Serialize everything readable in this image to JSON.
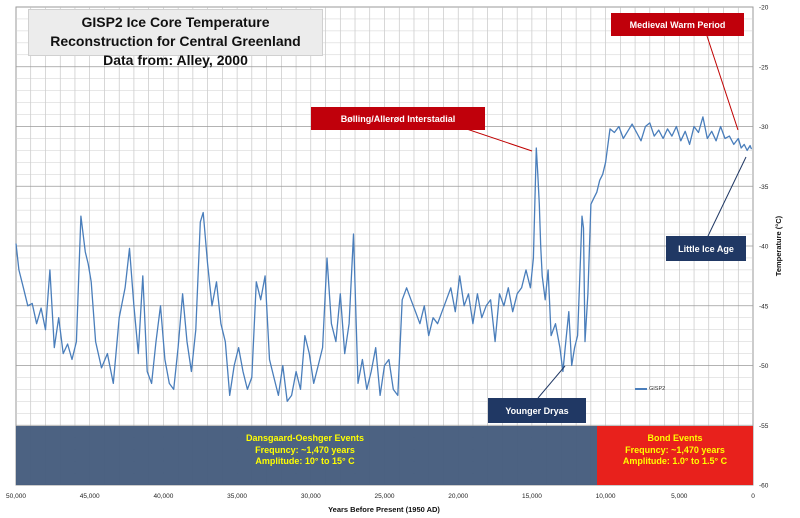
{
  "title": {
    "line1": "GISP2 Ice Core Temperature Reconstruction for Central Greenland",
    "line2": "Data from: Alley, 2000"
  },
  "callouts": {
    "medieval": "Medieval Warm Period",
    "bolling": "Bølling/Allerød Interstadial",
    "little_ice_age": "Little Ice Age",
    "younger_dryas": "Younger Dryas"
  },
  "events": {
    "dansgaard": {
      "name": "Dansgaard-Oeshger Events",
      "frequency": "Frequncy: ~1,470 years",
      "amplitude": "Amplitude: 10° to 15° C"
    },
    "bond": {
      "name": "Bond Events",
      "frequency": "Frequncy: ~1,470 years",
      "amplitude": "Amplitude: 1.0° to 1.5° C"
    }
  },
  "legend": {
    "label": "GISP2"
  },
  "colors": {
    "line": "#4a7ebb",
    "dansgaard": "#465d7e",
    "bond": "#e8211c",
    "event_text": "#ffff00",
    "red_callout": "#c0000b",
    "navy_callout": "#203864"
  },
  "chart_data": {
    "type": "line",
    "title": "GISP2 Ice Core Temperature Reconstruction for Central Greenland",
    "xlabel": "Years Before Present (1950 AD)",
    "ylabel": "Temperature (°C)",
    "x_reversed": true,
    "xlim": [
      50000,
      0
    ],
    "ylim": [
      -60,
      -20
    ],
    "x_ticks": [
      50000,
      45000,
      40000,
      35000,
      30000,
      25000,
      20000,
      15000,
      10000,
      5000,
      0
    ],
    "x_tick_labels": [
      "50,000",
      "45,000",
      "40,000",
      "35,000",
      "30,000",
      "25,000",
      "20,000",
      "15,000",
      "10,000",
      "5,000",
      "0"
    ],
    "y_ticks": [
      -20,
      -25,
      -30,
      -35,
      -40,
      -45,
      -50,
      -55,
      -60
    ],
    "y_tick_labels": [
      "-20",
      "-25",
      "-30",
      "-35",
      "-40",
      "-45",
      "-50",
      "-55",
      "-60"
    ],
    "grid": true,
    "legend_position": "lower-right",
    "series": [
      {
        "name": "GISP2",
        "x": [
          50000,
          49800,
          49500,
          49200,
          48900,
          48600,
          48300,
          48000,
          47700,
          47400,
          47100,
          46800,
          46500,
          46200,
          45900,
          45600,
          45300,
          45100,
          44900,
          44600,
          44200,
          43800,
          43400,
          43000,
          42600,
          42300,
          42000,
          41700,
          41400,
          41100,
          40800,
          40500,
          40200,
          39900,
          39600,
          39300,
          39000,
          38700,
          38400,
          38100,
          37800,
          37500,
          37300,
          37000,
          36700,
          36400,
          36100,
          35800,
          35500,
          35200,
          34900,
          34600,
          34300,
          34000,
          33700,
          33400,
          33100,
          32800,
          32500,
          32200,
          31900,
          31600,
          31300,
          31000,
          30700,
          30400,
          30100,
          29800,
          29500,
          29200,
          28900,
          28600,
          28300,
          28000,
          27700,
          27400,
          27100,
          26800,
          26500,
          26200,
          25900,
          25600,
          25300,
          25000,
          24700,
          24400,
          24100,
          23800,
          23500,
          23200,
          22900,
          22600,
          22300,
          22000,
          21700,
          21400,
          21100,
          20800,
          20500,
          20200,
          19900,
          19600,
          19300,
          19000,
          18700,
          18400,
          18100,
          17800,
          17500,
          17200,
          16900,
          16600,
          16300,
          16000,
          15700,
          15400,
          15100,
          14900,
          14700,
          14600,
          14500,
          14400,
          14300,
          14100,
          13900,
          13700,
          13400,
          13100,
          12900,
          12700,
          12500,
          12300,
          12100,
          11900,
          11700,
          11600,
          11500,
          11400,
          11200,
          11000,
          10800,
          10600,
          10400,
          10200,
          10000,
          9700,
          9400,
          9100,
          8800,
          8500,
          8200,
          7900,
          7600,
          7300,
          7000,
          6700,
          6400,
          6100,
          5800,
          5500,
          5200,
          4900,
          4600,
          4300,
          4000,
          3700,
          3400,
          3100,
          2800,
          2500,
          2200,
          1900,
          1600,
          1300,
          1000,
          800,
          600,
          400,
          200,
          100
        ],
        "y": [
          -39.8,
          -42.0,
          -43.5,
          -45.0,
          -44.8,
          -46.5,
          -45.2,
          -47.0,
          -42.0,
          -48.5,
          -46.0,
          -49.0,
          -48.2,
          -49.5,
          -48.0,
          -37.5,
          -40.5,
          -41.5,
          -43.0,
          -48.0,
          -50.2,
          -49.0,
          -51.5,
          -46.0,
          -43.5,
          -40.2,
          -45.0,
          -49.0,
          -42.5,
          -50.5,
          -51.5,
          -48.0,
          -45.0,
          -49.5,
          -51.5,
          -52.0,
          -48.5,
          -44.0,
          -48.0,
          -50.5,
          -47.0,
          -38.0,
          -37.2,
          -41.5,
          -45.0,
          -43.0,
          -46.5,
          -48.0,
          -52.5,
          -50.0,
          -48.5,
          -50.5,
          -52.0,
          -51.0,
          -43.0,
          -44.5,
          -42.5,
          -49.5,
          -51.0,
          -52.5,
          -50.0,
          -53.0,
          -52.5,
          -50.5,
          -52.0,
          -47.5,
          -49.0,
          -51.5,
          -50.0,
          -48.5,
          -41.0,
          -46.5,
          -48.0,
          -44.0,
          -49.0,
          -46.5,
          -39.0,
          -51.5,
          -49.5,
          -52.0,
          -50.5,
          -48.5,
          -52.5,
          -50.0,
          -49.5,
          -52.0,
          -52.5,
          -44.5,
          -43.5,
          -44.5,
          -45.5,
          -46.5,
          -45.0,
          -47.5,
          -46.0,
          -46.5,
          -45.5,
          -44.5,
          -43.5,
          -45.5,
          -42.5,
          -45.0,
          -44.0,
          -46.5,
          -44.0,
          -46.0,
          -45.0,
          -44.5,
          -48.0,
          -44.0,
          -45.0,
          -43.5,
          -45.5,
          -44.0,
          -43.5,
          -42.0,
          -43.5,
          -41.0,
          -31.8,
          -34.0,
          -36.5,
          -40.0,
          -42.5,
          -44.5,
          -42.0,
          -47.5,
          -46.5,
          -48.5,
          -50.5,
          -48.0,
          -45.5,
          -50.0,
          -48.5,
          -47.5,
          -41.0,
          -37.5,
          -38.5,
          -48.0,
          -44.0,
          -36.5,
          -36.0,
          -35.5,
          -34.5,
          -34.0,
          -33.0,
          -30.2,
          -30.5,
          -30.0,
          -31.0,
          -30.4,
          -29.8,
          -30.5,
          -31.2,
          -30.0,
          -29.7,
          -30.8,
          -30.3,
          -31.0,
          -30.2,
          -30.8,
          -30.0,
          -31.2,
          -30.4,
          -31.5,
          -30.0,
          -30.5,
          -29.2,
          -31.0,
          -30.4,
          -31.2,
          -30.0,
          -31.0,
          -30.8,
          -31.5,
          -31.0,
          -31.8,
          -31.5,
          -32.0,
          -31.6,
          -31.9
        ]
      }
    ]
  }
}
